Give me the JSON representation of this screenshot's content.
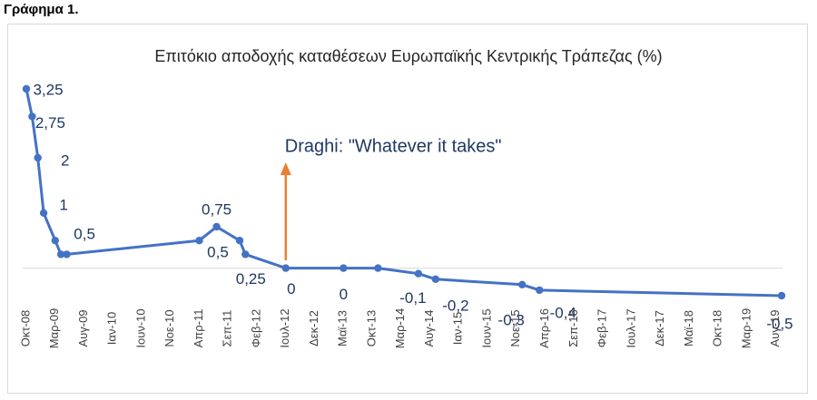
{
  "figure_label": "Γράφημα 1.",
  "chart_data": {
    "type": "line",
    "title": "Επιτόκιο αποδοχής καταθέσεων Ευρωπαϊκής Κεντρικής Τράπεζας (%)",
    "xlabel": "",
    "ylabel": "",
    "ylim": [
      -0.6,
      3.4
    ],
    "grid": false,
    "legend": "none",
    "x_range": [
      "2008-10",
      "2019-09"
    ],
    "x_ticks": [
      "Οκτ-08",
      "Μαρ-09",
      "Αυγ-09",
      "Ιαν-10",
      "Ιουν-10",
      "Νοε-10",
      "Απρ-11",
      "Σεπ-11",
      "Φεβ-12",
      "Ιουλ-12",
      "Δεκ-12",
      "Μαϊ-13",
      "Οκτ-13",
      "Μαρ-14",
      "Αυγ-14",
      "Ιαν-15",
      "Ιουν-15",
      "Νοε-15",
      "Απρ-16",
      "Σεπ-16",
      "Φεβ-17",
      "Ιουλ-17",
      "Δεκ-17",
      "Μαϊ-18",
      "Οκτ-18",
      "Μαρ-19",
      "Αυγ-19"
    ],
    "series": [
      {
        "name": "",
        "color": "#4472c4",
        "points": [
          {
            "x": "2008-10",
            "y": 3.25
          },
          {
            "x": "2008-11",
            "y": 2.75
          },
          {
            "x": "2008-12",
            "y": 2.0
          },
          {
            "x": "2009-01",
            "y": 1.0
          },
          {
            "x": "2009-03",
            "y": 0.5
          },
          {
            "x": "2009-04",
            "y": 0.25
          },
          {
            "x": "2009-05",
            "y": 0.25
          },
          {
            "x": "2011-04",
            "y": 0.5
          },
          {
            "x": "2011-07",
            "y": 0.75
          },
          {
            "x": "2011-11",
            "y": 0.5
          },
          {
            "x": "2011-12",
            "y": 0.25
          },
          {
            "x": "2012-07",
            "y": 0.0
          },
          {
            "x": "2013-05",
            "y": 0.0
          },
          {
            "x": "2013-11",
            "y": 0.0
          },
          {
            "x": "2014-06",
            "y": -0.1
          },
          {
            "x": "2014-09",
            "y": -0.2
          },
          {
            "x": "2015-12",
            "y": -0.3
          },
          {
            "x": "2016-03",
            "y": -0.4
          },
          {
            "x": "2019-09",
            "y": -0.5
          }
        ]
      }
    ],
    "data_labels": [
      {
        "text": "3,25",
        "x": "2008-10",
        "y": 3.25
      },
      {
        "text": "2,75",
        "x": "2008-11",
        "y": 2.75
      },
      {
        "text": "2",
        "x": "2008-12",
        "y": 2.0
      },
      {
        "text": "1",
        "x": "2009-01",
        "y": 1.0
      },
      {
        "text": "0,5",
        "x": "2009-04",
        "y": 0.5
      },
      {
        "text": "0,75",
        "x": "2011-07",
        "y": 0.75
      },
      {
        "text": "0,5",
        "x": "2011-11",
        "y": 0.5
      },
      {
        "text": "0,25",
        "x": "2011-12",
        "y": 0.25
      },
      {
        "text": "0",
        "x": "2012-07",
        "y": 0.0
      },
      {
        "text": "0",
        "x": "2013-05",
        "y": 0.0
      },
      {
        "text": "-0,1",
        "x": "2014-06",
        "y": -0.1
      },
      {
        "text": "-0,2",
        "x": "2014-09",
        "y": -0.2
      },
      {
        "text": "-0,3",
        "x": "2015-12",
        "y": -0.3
      },
      {
        "text": "-0,4",
        "x": "2016-03",
        "y": -0.4
      },
      {
        "text": "-0,5",
        "x": "2019-09",
        "y": -0.5
      }
    ],
    "annotations": [
      {
        "text": "Draghi: \"Whatever it takes\"",
        "x": "2012-07",
        "arrow_color": "#ed7d31"
      }
    ]
  }
}
